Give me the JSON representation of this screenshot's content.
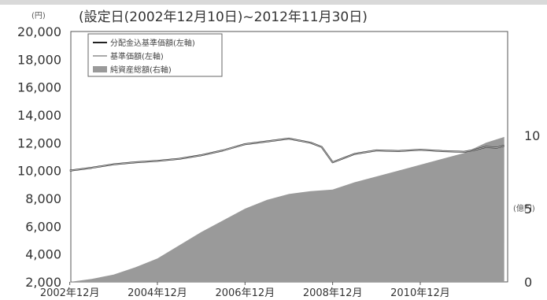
{
  "chart_data": {
    "type": "line",
    "title": "(設定日(2002年12月10日)~2012年11月30日)",
    "left_unit": "(円)",
    "right_unit": "(億円)",
    "y_left": {
      "min": 2000,
      "max": 20000,
      "ticks": [
        "20,000",
        "18,000",
        "16,000",
        "14,000",
        "12,000",
        "10,000",
        "8,000",
        "6,000",
        "4,000",
        "2,000"
      ],
      "tick_values": [
        20000,
        18000,
        16000,
        14000,
        12000,
        10000,
        8000,
        6000,
        4000,
        2000
      ]
    },
    "y_right": {
      "min": 0,
      "max": 17.1,
      "ticks": [
        "10",
        "5",
        "0"
      ],
      "tick_values": [
        10,
        5,
        0
      ]
    },
    "x": {
      "start": "2002-12-10",
      "end": "2012-11-30",
      "ticks": [
        "2002年12月",
        "2004年12月",
        "2006年12月",
        "2008年12月",
        "2010年12月"
      ],
      "tick_dates": [
        "2002-12",
        "2004-12",
        "2006-12",
        "2008-12",
        "2010-12"
      ]
    },
    "legend": [
      "分配金込基準価額(左軸)",
      "基準価額(左軸)",
      "純資産総額(右軸)"
    ],
    "series": [
      {
        "name": "分配金込基準価額(左軸)",
        "axis": "left",
        "color": "#222222",
        "x": [
          "2002-12",
          "2003-06",
          "2003-12",
          "2004-06",
          "2004-12",
          "2005-06",
          "2005-12",
          "2006-06",
          "2006-12",
          "2007-06",
          "2007-12",
          "2008-06",
          "2008-09",
          "2008-12",
          "2009-03",
          "2009-06",
          "2009-12",
          "2010-06",
          "2010-12",
          "2011-06",
          "2011-12",
          "2012-03",
          "2012-06",
          "2012-09",
          "2012-11"
        ],
        "values": [
          10000,
          10200,
          10450,
          10600,
          10700,
          10850,
          11100,
          11450,
          11900,
          12100,
          12300,
          12000,
          11700,
          10600,
          10900,
          11200,
          11450,
          11400,
          11500,
          11400,
          11350,
          11500,
          11700,
          11650,
          11800
        ]
      },
      {
        "name": "基準価額(左軸)",
        "axis": "left",
        "color": "#aaaaaa",
        "x": [
          "2002-12",
          "2003-06",
          "2003-12",
          "2004-06",
          "2004-12",
          "2005-06",
          "2005-12",
          "2006-06",
          "2006-12",
          "2007-06",
          "2007-12",
          "2008-06",
          "2008-09",
          "2008-12",
          "2009-03",
          "2009-06",
          "2009-12",
          "2010-06",
          "2010-12",
          "2011-06",
          "2011-12",
          "2012-03",
          "2012-06",
          "2012-09",
          "2012-11"
        ],
        "values": [
          10000,
          10200,
          10450,
          10600,
          10700,
          10850,
          11100,
          11450,
          11900,
          12100,
          12300,
          12000,
          11700,
          10600,
          10900,
          11200,
          11450,
          11400,
          11500,
          11400,
          11350,
          11500,
          11700,
          11650,
          11800
        ]
      },
      {
        "name": "純資産総額(右軸)",
        "axis": "right",
        "color": "#9a9a9a",
        "type": "area",
        "x": [
          "2002-12",
          "2003-06",
          "2003-12",
          "2004-06",
          "2004-12",
          "2005-06",
          "2005-12",
          "2006-06",
          "2006-12",
          "2007-06",
          "2007-12",
          "2008-06",
          "2008-12",
          "2009-06",
          "2009-12",
          "2010-06",
          "2010-12",
          "2011-06",
          "2011-12",
          "2012-06",
          "2012-11"
        ],
        "values": [
          0,
          0.2,
          0.5,
          1.0,
          1.6,
          2.5,
          3.4,
          4.2,
          5.0,
          5.6,
          6.0,
          6.2,
          6.3,
          6.8,
          7.2,
          7.6,
          8.0,
          8.4,
          8.8,
          9.5,
          9.9
        ]
      }
    ]
  }
}
